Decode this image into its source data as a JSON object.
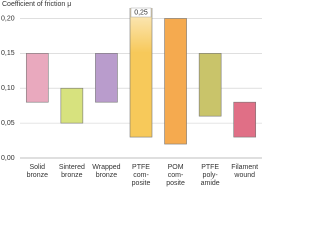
{
  "chart_data": {
    "type": "floating-bar",
    "title": "Coefficient of friction μ",
    "categories": [
      "Solid\nbronze",
      "Sintered\nbronze",
      "Wrapped\nbronze",
      "PTFE\ncom-\nposite",
      "POM\ncom-\nposite",
      "PTFE\npoly-\namide",
      "Filament\nwound"
    ],
    "low": [
      0.08,
      0.05,
      0.08,
      0.03,
      0.02,
      0.06,
      0.03
    ],
    "high": [
      0.15,
      0.1,
      0.15,
      0.25,
      0.2,
      0.15,
      0.08
    ],
    "value_labels": [
      null,
      null,
      null,
      "0,25",
      null,
      null,
      null
    ],
    "colors": [
      "#e9a9be",
      "#d7e27e",
      "#b99ccc",
      "#f7c95a",
      "#f5aa4f",
      "#c9c46a",
      "#e06f86"
    ],
    "ylim": [
      0,
      0.215
    ],
    "yticks": [
      {
        "value": 0,
        "label": "0,00"
      },
      {
        "value": 0.05,
        "label": "0,05"
      },
      {
        "value": 0.1,
        "label": "0,10"
      },
      {
        "value": 0.15,
        "label": "0,15"
      },
      {
        "value": 0.2,
        "label": "0,20"
      }
    ],
    "grid": true
  }
}
